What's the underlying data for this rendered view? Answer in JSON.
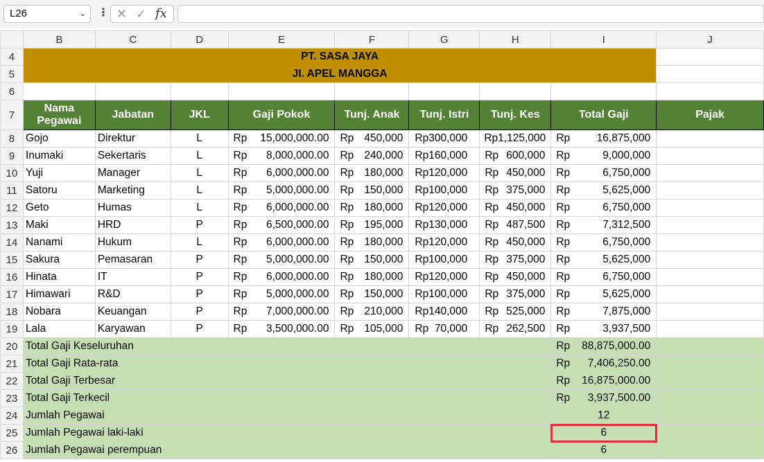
{
  "formula_bar": {
    "name_box": "L26",
    "dots": "⋮",
    "cancel_icon": "✕",
    "confirm_icon": "✓",
    "fx_label": "fx",
    "formula": ""
  },
  "columns": [
    "B",
    "C",
    "D",
    "E",
    "F",
    "G",
    "H",
    "I",
    "J"
  ],
  "rows": [
    "4",
    "5",
    "6",
    "7",
    "8",
    "9",
    "10",
    "11",
    "12",
    "13",
    "14",
    "15",
    "16",
    "17",
    "18",
    "19",
    "20",
    "21",
    "22",
    "23",
    "24",
    "25",
    "26"
  ],
  "company": {
    "name": "PT. SASA JAYA",
    "address": "JI. APEL MANGGA"
  },
  "headers": {
    "nama": "Nama Pegawai",
    "jabatan": "Jabatan",
    "jkl": "JKL",
    "gaji": "Gaji Pokok",
    "anak": "Tunj. Anak",
    "istri": "Tunj. Istri",
    "kes": "Tunj. Kes",
    "total": "Total Gaji",
    "pajak": "Pajak"
  },
  "currency": "Rp",
  "employees": [
    {
      "nama": "Gojo",
      "jabatan": "Direktur",
      "jkl": "L",
      "gaji": "15,000,000.00",
      "anak": "450,000",
      "istri": "Rp300,000",
      "kes": "Rp1,125,000",
      "total": "16,875,000"
    },
    {
      "nama": "Inumaki",
      "jabatan": "Sekertaris",
      "jkl": "L",
      "gaji": "8,000,000.00",
      "anak": "240,000",
      "istri": "Rp160,000",
      "kes": "600,000",
      "total": "9,000,000"
    },
    {
      "nama": "Yuji",
      "jabatan": "Manager",
      "jkl": "L",
      "gaji": "6,000,000.00",
      "anak": "180,000",
      "istri": "Rp120,000",
      "kes": "450,000",
      "total": "6,750,000"
    },
    {
      "nama": "Satoru",
      "jabatan": "Marketing",
      "jkl": "L",
      "gaji": "5,000,000.00",
      "anak": "150,000",
      "istri": "Rp100,000",
      "kes": "375,000",
      "total": "5,625,000"
    },
    {
      "nama": "Geto",
      "jabatan": "Humas",
      "jkl": "L",
      "gaji": "6,000,000.00",
      "anak": "180,000",
      "istri": "Rp120,000",
      "kes": "450,000",
      "total": "6,750,000"
    },
    {
      "nama": "Maki",
      "jabatan": "HRD",
      "jkl": "P",
      "gaji": "6,500,000.00",
      "anak": "195,000",
      "istri": "Rp130,000",
      "kes": "487,500",
      "total": "7,312,500"
    },
    {
      "nama": "Nanami",
      "jabatan": "Hukum",
      "jkl": "L",
      "gaji": "6,000,000.00",
      "anak": "180,000",
      "istri": "Rp120,000",
      "kes": "450,000",
      "total": "6,750,000"
    },
    {
      "nama": "Sakura",
      "jabatan": "Pemasaran",
      "jkl": "P",
      "gaji": "5,000,000.00",
      "anak": "150,000",
      "istri": "Rp100,000",
      "kes": "375,000",
      "total": "5,625,000"
    },
    {
      "nama": "Hinata",
      "jabatan": "IT",
      "jkl": "P",
      "gaji": "6,000,000.00",
      "anak": "180,000",
      "istri": "Rp120,000",
      "kes": "450,000",
      "total": "6,750,000"
    },
    {
      "nama": "Himawari",
      "jabatan": "R&D",
      "jkl": "P",
      "gaji": "5,000,000.00",
      "anak": "150,000",
      "istri": "Rp100,000",
      "kes": "375,000",
      "total": "5,625,000"
    },
    {
      "nama": "Nobara",
      "jabatan": "Keuangan",
      "jkl": "P",
      "gaji": "7,000,000.00",
      "anak": "210,000",
      "istri": "Rp140,000",
      "kes": "525,000",
      "total": "7,875,000"
    },
    {
      "nama": "Lala",
      "jabatan": "Karyawan",
      "jkl": "P",
      "gaji": "3,500,000.00",
      "anak": "105,000",
      "istri": "Rp  70,000",
      "kes": "262,500",
      "total": "3,937,500"
    }
  ],
  "summary": [
    {
      "label": "Total Gaji Keseluruhan",
      "value": "88,875,000.00",
      "curr": true
    },
    {
      "label": "Total Gaji Rata-rata",
      "value": "7,406,250.00",
      "curr": true
    },
    {
      "label": "Total Gaji Terbesar",
      "value": "16,875,000.00",
      "curr": true
    },
    {
      "label": "Total Gaji Terkecil",
      "value": "3,937,500.00",
      "curr": true
    },
    {
      "label": "Jumlah Pegawai",
      "value": "12",
      "curr": false
    },
    {
      "label": "Jumlah Pegawai laki-laki",
      "value": "6",
      "curr": false
    },
    {
      "label": "Jumlah Pegawai perempuan",
      "value": "6",
      "curr": false
    }
  ],
  "colors": {
    "title_fill": "#bf8f00",
    "header_fill": "#548235",
    "summary_fill": "#c6e0b4",
    "highlight": "#e0303c"
  }
}
